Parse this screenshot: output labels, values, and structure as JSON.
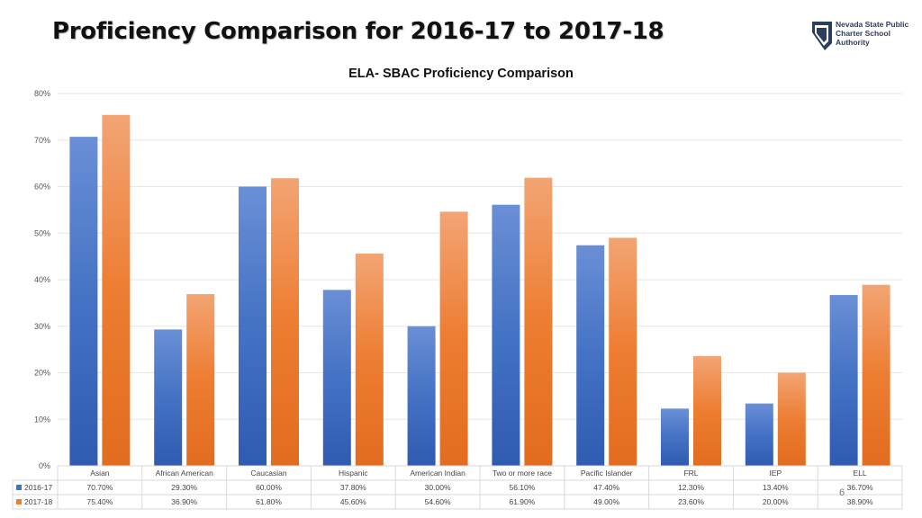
{
  "slide": {
    "title": "Proficiency Comparison for 2016-17 to 2017-18",
    "logo_text": [
      "Nevada State Public",
      "Charter School",
      "Authority"
    ],
    "page_number": "6"
  },
  "colors": {
    "series_2016": "#4472c4",
    "series_2017": "#ed7d31",
    "grid": "#e6e6e6",
    "table_border": "#d9d9d9"
  },
  "chart_data": {
    "type": "bar",
    "title": "ELA- SBAC Proficiency Comparison",
    "xlabel": "",
    "ylabel": "",
    "ylim": [
      0,
      80
    ],
    "yticks": [
      0,
      10,
      20,
      30,
      40,
      50,
      60,
      70,
      80
    ],
    "ytick_labels": [
      "0%",
      "10%",
      "20%",
      "30%",
      "40%",
      "50%",
      "60%",
      "70%",
      "80%"
    ],
    "grid": true,
    "legend": "data-table",
    "categories": [
      "Asian",
      "African American",
      "Caucasian",
      "Hispanic",
      "American Indian",
      "Two or more race",
      "Pacific Islander",
      "FRL",
      "IEP",
      "ELL"
    ],
    "series": [
      {
        "name": "2016-17",
        "values": [
          70.7,
          29.3,
          60.0,
          37.8,
          30.0,
          56.1,
          47.4,
          12.3,
          13.4,
          36.7
        ],
        "labels": [
          "70.70%",
          "29.30%",
          "60.00%",
          "37.80%",
          "30.00%",
          "56.10%",
          "47.40%",
          "12.30%",
          "13.40%",
          "36.70%"
        ]
      },
      {
        "name": "2017-18",
        "values": [
          75.4,
          36.9,
          61.8,
          45.6,
          54.6,
          61.9,
          49.0,
          23.6,
          20.0,
          38.9
        ],
        "labels": [
          "75.40%",
          "36.90%",
          "61.80%",
          "45.60%",
          "54.60%",
          "61.90%",
          "49.00%",
          "23.60%",
          "20.00%",
          "38.90%"
        ]
      }
    ]
  }
}
